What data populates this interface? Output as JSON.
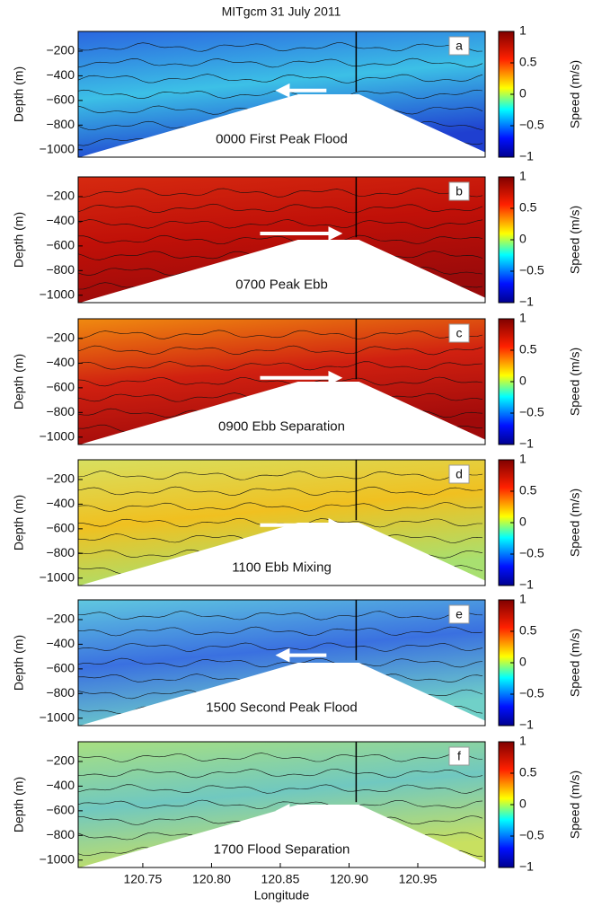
{
  "chart_data": [
    {
      "type": "heatmap",
      "title": "MITgcm 31 July 2011",
      "label": "a",
      "annotation": "0000 First Peak Flood",
      "ylabel": "Depth (m)",
      "colorbar_label": "Speed (m/s)",
      "xlim": [
        120.703,
        120.999
      ],
      "ylim": [
        -1060,
        -40
      ],
      "yticks": [
        {
          "value": -200,
          "label": "−200"
        },
        {
          "value": -400,
          "label": "−400"
        },
        {
          "value": -600,
          "label": "−600"
        },
        {
          "value": -800,
          "label": "−800"
        },
        {
          "value": -1000,
          "label": "−1000"
        }
      ],
      "clim": [
        -1,
        1
      ],
      "cticks": [
        {
          "value": -1,
          "label": "−1"
        },
        {
          "value": -0.5,
          "label": "−0.5"
        },
        0,
        0.5,
        1
      ]
    },
    {
      "type": "heatmap",
      "label": "b",
      "annotation": "0700 Peak Ebb",
      "ylabel": "Depth (m)",
      "colorbar_label": "Speed (m/s)",
      "xlim": [
        120.703,
        120.999
      ],
      "ylim": [
        -1060,
        -40
      ],
      "yticks": [
        {
          "value": -200,
          "label": "−200"
        },
        {
          "value": -400,
          "label": "−400"
        },
        {
          "value": -600,
          "label": "−600"
        },
        {
          "value": -800,
          "label": "−800"
        },
        {
          "value": -1000,
          "label": "−1000"
        }
      ],
      "clim": [
        -1,
        1
      ],
      "cticks": [
        {
          "value": -1,
          "label": "−1"
        },
        {
          "value": -0.5,
          "label": "−0.5"
        },
        0,
        0.5,
        1
      ]
    },
    {
      "type": "heatmap",
      "label": "c",
      "annotation": "0900 Ebb Separation",
      "ylabel": "Depth (m)",
      "colorbar_label": "Speed (m/s)",
      "xlim": [
        120.703,
        120.999
      ],
      "ylim": [
        -1060,
        -40
      ],
      "yticks": [
        {
          "value": -200,
          "label": "−200"
        },
        {
          "value": -400,
          "label": "−400"
        },
        {
          "value": -600,
          "label": "−600"
        },
        {
          "value": -800,
          "label": "−800"
        },
        {
          "value": -1000,
          "label": "−1000"
        }
      ],
      "clim": [
        -1,
        1
      ],
      "cticks": [
        {
          "value": -1,
          "label": "−1"
        },
        {
          "value": -0.5,
          "label": "−0.5"
        },
        0,
        0.5,
        1
      ]
    },
    {
      "type": "heatmap",
      "label": "d",
      "annotation": "1100 Ebb Mixing",
      "ylabel": "Depth (m)",
      "colorbar_label": "Speed (m/s)",
      "xlim": [
        120.703,
        120.999
      ],
      "ylim": [
        -1060,
        -40
      ],
      "yticks": [
        {
          "value": -200,
          "label": "−200"
        },
        {
          "value": -400,
          "label": "−400"
        },
        {
          "value": -600,
          "label": "−600"
        },
        {
          "value": -800,
          "label": "−800"
        },
        {
          "value": -1000,
          "label": "−1000"
        }
      ],
      "clim": [
        -1,
        1
      ],
      "cticks": [
        {
          "value": -1,
          "label": "−1"
        },
        {
          "value": -0.5,
          "label": "−0.5"
        },
        0,
        0.5,
        1
      ]
    },
    {
      "type": "heatmap",
      "label": "e",
      "annotation": "1500 Second Peak Flood",
      "ylabel": "Depth (m)",
      "colorbar_label": "Speed (m/s)",
      "xlim": [
        120.703,
        120.999
      ],
      "ylim": [
        -1060,
        -40
      ],
      "yticks": [
        {
          "value": -200,
          "label": "−200"
        },
        {
          "value": -400,
          "label": "−400"
        },
        {
          "value": -600,
          "label": "−600"
        },
        {
          "value": -800,
          "label": "−800"
        },
        {
          "value": -1000,
          "label": "−1000"
        }
      ],
      "clim": [
        -1,
        1
      ],
      "cticks": [
        {
          "value": -1,
          "label": "−1"
        },
        {
          "value": -0.5,
          "label": "−0.5"
        },
        0,
        0.5,
        1
      ]
    },
    {
      "type": "heatmap",
      "label": "f",
      "annotation": "1700 Flood Separation",
      "ylabel": "Depth (m)",
      "colorbar_label": "Speed (m/s)",
      "xlabel": "Longitude",
      "xlim": [
        120.703,
        120.999
      ],
      "ylim": [
        -1060,
        -40
      ],
      "xticks": [
        120.75,
        {
          "value": 120.8,
          "label": "120.80"
        },
        120.85,
        {
          "value": 120.9,
          "label": "120.90"
        },
        120.95
      ],
      "yticks": [
        {
          "value": -200,
          "label": "−200"
        },
        {
          "value": -400,
          "label": "−400"
        },
        {
          "value": -600,
          "label": "−600"
        },
        {
          "value": -800,
          "label": "−800"
        },
        {
          "value": -1000,
          "label": "−1000"
        }
      ],
      "clim": [
        -1,
        1
      ],
      "cticks": [
        {
          "value": -1,
          "label": "−1"
        },
        {
          "value": -0.5,
          "label": "−0.5"
        },
        0,
        0.5,
        1
      ]
    }
  ]
}
